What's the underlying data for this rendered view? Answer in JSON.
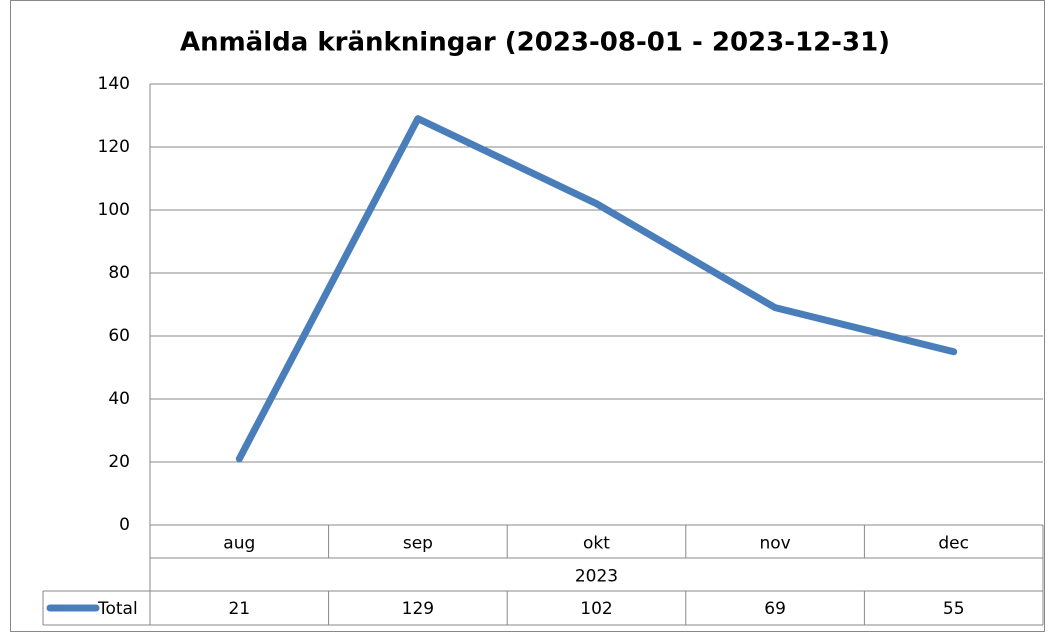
{
  "chart_data": {
    "type": "line",
    "title": "Anmälda kränkningar (2023-08-01 - 2023-12-31)",
    "categories": [
      "aug",
      "sep",
      "okt",
      "nov",
      "dec"
    ],
    "category_group": "2023",
    "series": [
      {
        "name": "Total",
        "color": "#4a7ebb",
        "values": [
          21,
          129,
          102,
          69,
          55
        ]
      }
    ],
    "ylim": [
      0,
      140
    ],
    "yticks": [
      0,
      20,
      40,
      60,
      80,
      100,
      120,
      140
    ],
    "grid": true,
    "data_table": true
  }
}
